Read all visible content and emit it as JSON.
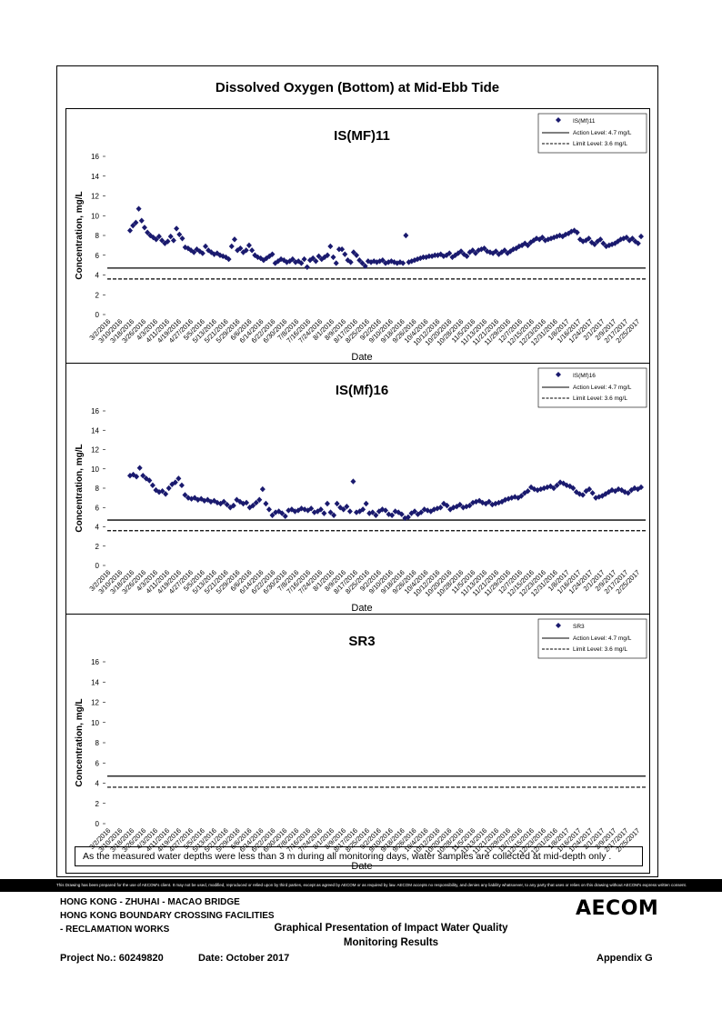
{
  "page_title": "Dissolved Oxygen (Bottom) at Mid-Ebb Tide",
  "note": "As the measured water depths were less than 3 m during all monitoring days, water samples are collected  at mid-depth only .",
  "disclaimer": "This Drawing has been prepared for the use of AECOM's client. It may not be used, modified, reproduced or relied upon by third parties, except as agreed by AECOM or as required by law. AECOM accepts no responsibility, and denies any liability whatsoever, to any party that uses or relies on this drawing without AECOM's express written consent.",
  "footer": {
    "line1": "HONG KONG - ZHUHAI - MACAO BRIDGE",
    "line2": "HONG KONG BOUNDARY CROSSING FACILITIES",
    "line3": "- RECLAMATION WORKS",
    "presentation_line1": "Graphical Presentation of Impact Water Quality",
    "presentation_line2": "Monitoring Results",
    "project": "Project No.: 60249820",
    "date": "Date: October 2017",
    "appendix": "Appendix G",
    "logo": "AECOM"
  },
  "colors": {
    "marker": "#1a1a6e",
    "line": "#000000"
  },
  "chart_data": [
    {
      "type": "scatter",
      "title": "IS(MF)11",
      "xlabel": "Date",
      "ylabel": "Concentration, mg/L",
      "ylim": [
        0,
        16
      ],
      "yticks": [
        "0",
        "2",
        "4",
        "6",
        "8",
        "10",
        "12",
        "14",
        "16"
      ],
      "x_tick_labels": [
        "3/2/2016",
        "3/10/2016",
        "3/18/2016",
        "3/26/2016",
        "4/3/2016",
        "4/11/2016",
        "4/19/2016",
        "4/27/2016",
        "5/5/2016",
        "5/13/2016",
        "5/21/2016",
        "5/29/2016",
        "6/6/2016",
        "6/14/2016",
        "6/22/2016",
        "6/30/2016",
        "7/8/2016",
        "7/16/2016",
        "7/24/2016",
        "8/1/2016",
        "8/9/2016",
        "8/17/2016",
        "8/25/2016",
        "9/2/2016",
        "9/10/2016",
        "9/18/2016",
        "9/26/2016",
        "10/4/2016",
        "10/12/2016",
        "10/20/2016",
        "10/28/2016",
        "11/5/2016",
        "11/13/2016",
        "11/21/2016",
        "11/29/2016",
        "12/7/2016",
        "12/15/2016",
        "12/23/2016",
        "12/31/2016",
        "1/8/2017",
        "1/16/2017",
        "1/24/2017",
        "2/1/2017",
        "2/9/2017",
        "2/17/2017",
        "2/25/2017"
      ],
      "legend": {
        "placement": "top-right",
        "series": "IS(Mf)11",
        "action": "Action Level: 4.7 mg/L",
        "limit": "Limit Level: 3.6 mg/L"
      },
      "action_level": 4.7,
      "limit_level": 3.6,
      "points": [
        8.5,
        9.0,
        9.3,
        10.7,
        9.5,
        8.8,
        8.3,
        8.0,
        7.8,
        7.6,
        7.9,
        7.5,
        7.2,
        7.4,
        7.9,
        7.5,
        8.7,
        8.1,
        7.7,
        6.8,
        6.7,
        6.5,
        6.3,
        6.6,
        6.4,
        6.2,
        6.9,
        6.5,
        6.3,
        6.1,
        6.2,
        6.0,
        5.9,
        5.8,
        5.6,
        6.9,
        7.6,
        6.5,
        6.7,
        6.3,
        6.5,
        7.0,
        6.5,
        6.0,
        5.8,
        5.7,
        5.5,
        5.7,
        5.9,
        6.1,
        5.2,
        5.4,
        5.6,
        5.5,
        5.3,
        5.4,
        5.6,
        5.3,
        5.4,
        5.2,
        5.6,
        4.8,
        5.5,
        5.7,
        5.4,
        5.9,
        5.6,
        5.8,
        6.0,
        6.9,
        5.8,
        5.2,
        6.6,
        6.6,
        6.1,
        5.5,
        5.3,
        6.3,
        6.0,
        5.5,
        5.2,
        4.9,
        5.4,
        5.3,
        5.4,
        5.3,
        5.4,
        5.5,
        5.2,
        5.3,
        5.4,
        5.3,
        5.2,
        5.3,
        5.2,
        8.0,
        5.3,
        5.4,
        5.5,
        5.6,
        5.7,
        5.8,
        5.8,
        5.9,
        5.9,
        6.0,
        6.0,
        6.1,
        5.9,
        6.0,
        6.2,
        5.8,
        6.0,
        6.2,
        6.4,
        6.1,
        5.9,
        6.3,
        6.5,
        6.2,
        6.5,
        6.6,
        6.7,
        6.4,
        6.3,
        6.2,
        6.4,
        6.1,
        6.3,
        6.5,
        6.2,
        6.4,
        6.6,
        6.7,
        6.9,
        7.0,
        7.2,
        7.0,
        7.3,
        7.5,
        7.7,
        7.6,
        7.8,
        7.5,
        7.6,
        7.7,
        7.8,
        7.9,
        8.0,
        7.9,
        8.1,
        8.2,
        8.4,
        8.5,
        8.3,
        7.6,
        7.4,
        7.5,
        7.7,
        7.3,
        7.1,
        7.4,
        7.6,
        7.2,
        6.9,
        7.0,
        7.1,
        7.2,
        7.4,
        7.6,
        7.7,
        7.8,
        7.5,
        7.7,
        7.4,
        7.2,
        7.9
      ]
    },
    {
      "type": "scatter",
      "title": "IS(Mf)16",
      "xlabel": "Date",
      "ylabel": "Concentration, mg/L",
      "ylim": [
        0,
        16
      ],
      "yticks": [
        "0",
        "2",
        "4",
        "6",
        "8",
        "10",
        "12",
        "14",
        "16"
      ],
      "x_tick_labels": [
        "3/2/2016",
        "3/10/2016",
        "3/18/2016",
        "3/26/2016",
        "4/3/2016",
        "4/11/2016",
        "4/19/2016",
        "4/27/2016",
        "5/5/2016",
        "5/13/2016",
        "5/21/2016",
        "5/29/2016",
        "6/6/2016",
        "6/14/2016",
        "6/22/2016",
        "6/30/2016",
        "7/8/2016",
        "7/16/2016",
        "7/24/2016",
        "8/1/2016",
        "8/9/2016",
        "8/17/2016",
        "8/25/2016",
        "9/2/2016",
        "9/10/2016",
        "9/18/2016",
        "9/26/2016",
        "10/4/2016",
        "10/12/2016",
        "10/20/2016",
        "10/28/2016",
        "11/5/2016",
        "11/13/2016",
        "11/21/2016",
        "11/29/2016",
        "12/7/2016",
        "12/15/2016",
        "12/23/2016",
        "12/31/2016",
        "1/8/2017",
        "1/16/2017",
        "1/24/2017",
        "2/1/2017",
        "2/9/2017",
        "2/17/2017",
        "2/25/2017"
      ],
      "legend": {
        "placement": "top-right",
        "series": "IS(Mf)16",
        "action": "Action Level: 4.7 mg/L",
        "limit": "Limit Level: 3.6 mg/L"
      },
      "action_level": 4.7,
      "limit_level": 3.6,
      "points": [
        9.3,
        9.4,
        9.2,
        10.1,
        9.3,
        9.0,
        8.8,
        8.3,
        7.8,
        7.6,
        7.7,
        7.4,
        8.0,
        8.4,
        8.6,
        9.0,
        8.3,
        7.3,
        7.0,
        6.9,
        7.0,
        6.8,
        6.9,
        6.7,
        6.8,
        6.6,
        6.7,
        6.5,
        6.4,
        6.6,
        6.3,
        6.0,
        6.2,
        6.8,
        6.6,
        6.4,
        6.5,
        6.0,
        6.2,
        6.5,
        6.8,
        7.9,
        6.4,
        5.8,
        5.2,
        5.5,
        5.6,
        5.4,
        5.1,
        5.7,
        5.8,
        5.6,
        5.7,
        5.9,
        5.8,
        5.7,
        5.9,
        5.5,
        5.6,
        5.8,
        5.4,
        6.4,
        5.5,
        5.2,
        6.4,
        6.0,
        5.8,
        6.1,
        5.6,
        8.7,
        5.5,
        5.6,
        5.8,
        6.4,
        5.4,
        5.5,
        5.2,
        5.6,
        5.8,
        5.7,
        5.3,
        5.2,
        5.6,
        5.5,
        5.3,
        4.9,
        5.0,
        5.4,
        5.6,
        5.3,
        5.5,
        5.8,
        5.7,
        5.6,
        5.8,
        5.9,
        6.0,
        6.4,
        6.2,
        5.8,
        6.0,
        6.1,
        6.3,
        6.0,
        6.1,
        6.2,
        6.5,
        6.6,
        6.7,
        6.5,
        6.4,
        6.6,
        6.3,
        6.4,
        6.5,
        6.6,
        6.8,
        6.9,
        7.0,
        7.1,
        7.0,
        7.2,
        7.5,
        7.7,
        8.1,
        7.9,
        7.8,
        7.9,
        8.0,
        8.1,
        8.2,
        8.0,
        8.3,
        8.6,
        8.5,
        8.3,
        8.2,
        8.0,
        7.6,
        7.4,
        7.3,
        7.7,
        7.9,
        7.5,
        7.0,
        7.1,
        7.2,
        7.4,
        7.6,
        7.8,
        7.7,
        7.9,
        7.8,
        7.6,
        7.5,
        7.8,
        8.0,
        7.9,
        8.1
      ]
    },
    {
      "type": "scatter",
      "title": "SR3",
      "xlabel": "Date",
      "ylabel": "Concentration, mg/L",
      "ylim": [
        0,
        16
      ],
      "yticks": [
        "0",
        "2",
        "4",
        "6",
        "8",
        "10",
        "12",
        "14",
        "16"
      ],
      "x_tick_labels": [
        "3/2/2016",
        "3/10/2016",
        "3/18/2016",
        "3/26/2016",
        "4/3/2016",
        "4/11/2016",
        "4/19/2016",
        "4/27/2016",
        "5/5/2016",
        "5/13/2016",
        "5/21/2016",
        "5/29/2016",
        "6/6/2016",
        "6/14/2016",
        "6/22/2016",
        "6/30/2016",
        "7/8/2016",
        "7/16/2016",
        "7/24/2016",
        "8/1/2016",
        "8/9/2016",
        "8/17/2016",
        "8/25/2016",
        "9/2/2016",
        "9/10/2016",
        "9/18/2016",
        "9/26/2016",
        "10/4/2016",
        "10/12/2016",
        "10/20/2016",
        "10/28/2016",
        "11/5/2016",
        "11/13/2016",
        "11/21/2016",
        "11/29/2016",
        "12/7/2016",
        "12/15/2016",
        "12/23/2016",
        "12/31/2016",
        "1/8/2017",
        "1/16/2017",
        "1/24/2017",
        "2/1/2017",
        "2/9/2017",
        "2/17/2017",
        "2/25/2017"
      ],
      "legend": {
        "placement": "top-right",
        "series": "SR3",
        "action": "Action Level: 4.7 mg/L",
        "limit": "Limit Level: 3.6 mg/L"
      },
      "action_level": 4.7,
      "limit_level": 3.6,
      "points": []
    }
  ]
}
